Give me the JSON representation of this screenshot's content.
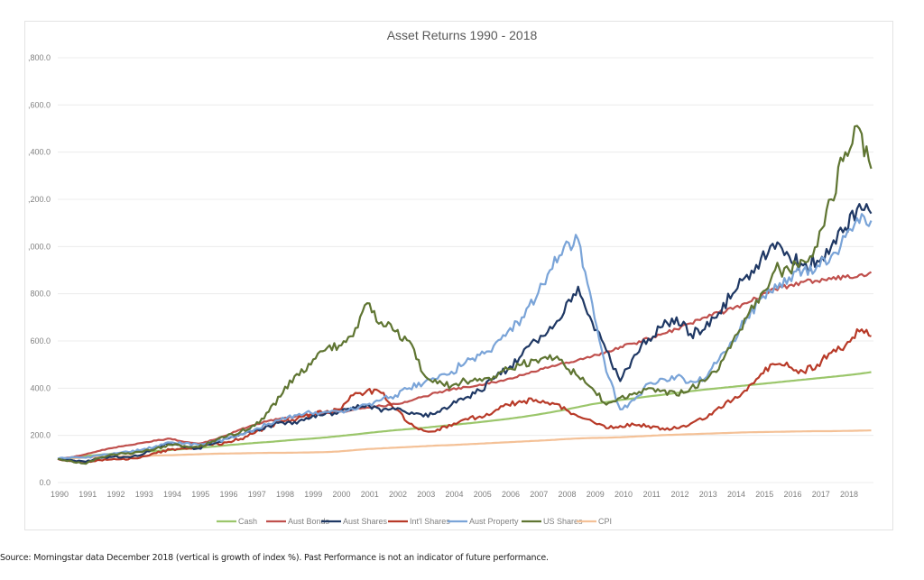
{
  "chart_data": {
    "type": "line",
    "title": "Asset Returns 1990 - 2018",
    "xlabel": "",
    "ylabel": "",
    "ylim": [
      0,
      1800
    ],
    "xlim": [
      1990,
      2019
    ],
    "yticks": [
      0,
      200,
      400,
      600,
      800,
      1000,
      1200,
      1400,
      1600,
      1800
    ],
    "ytick_labels": [
      "0.0",
      "200.0",
      "400.0",
      "600.0",
      "800.0",
      ",000.0",
      ",200.0",
      ",400.0",
      ",600.0",
      ",800.0"
    ],
    "xtick_labels": [
      "1990",
      "1991",
      "1992",
      "1993",
      "1994",
      "1995",
      "1996",
      "1997",
      "1998",
      "1999",
      "2000",
      "2001",
      "2002",
      "2003",
      "2004",
      "2005",
      "2006",
      "2007",
      "2008",
      "2009",
      "2010",
      "2011",
      "2012",
      "2013",
      "2014",
      "2015",
      "2016",
      "2017",
      "2018"
    ],
    "grid": true,
    "legend_position": "bottom",
    "x": [
      1990.0,
      1990.5,
      1991.0,
      1991.5,
      1992.0,
      1992.5,
      1993.0,
      1993.5,
      1994.0,
      1994.5,
      1995.0,
      1995.5,
      1996.0,
      1996.5,
      1997.0,
      1997.5,
      1998.0,
      1998.5,
      1999.0,
      1999.5,
      2000.0,
      2000.5,
      2001.0,
      2001.5,
      2002.0,
      2002.5,
      2003.0,
      2003.5,
      2004.0,
      2004.5,
      2005.0,
      2005.5,
      2006.0,
      2006.5,
      2007.0,
      2007.5,
      2008.0,
      2008.5,
      2009.0,
      2009.5,
      2010.0,
      2010.5,
      2011.0,
      2011.5,
      2012.0,
      2012.5,
      2013.0,
      2013.5,
      2014.0,
      2014.5,
      2015.0,
      2015.5,
      2016.0,
      2016.5,
      2017.0,
      2017.5,
      2018.0,
      2018.5,
      2018.92
    ],
    "series": [
      {
        "name": "Cash",
        "color": "#9bc66b",
        "values": [
          100,
          106,
          113,
          118,
          123,
          127,
          131,
          134,
          138,
          142,
          147,
          152,
          158,
          163,
          168,
          172,
          177,
          182,
          186,
          191,
          197,
          203,
          210,
          216,
          222,
          227,
          232,
          238,
          244,
          250,
          256,
          263,
          270,
          278,
          287,
          297,
          308,
          320,
          332,
          341,
          350,
          357,
          365,
          372,
          380,
          387,
          394,
          400,
          406,
          412,
          418,
          424,
          430,
          436,
          442,
          448,
          454,
          461,
          468
        ]
      },
      {
        "name": "Aust Bonds",
        "color": "#c0504d",
        "values": [
          100,
          108,
          120,
          135,
          148,
          158,
          168,
          178,
          186,
          172,
          165,
          180,
          200,
          225,
          245,
          262,
          272,
          282,
          290,
          296,
          300,
          308,
          318,
          325,
          333,
          345,
          365,
          380,
          395,
          405,
          415,
          425,
          440,
          455,
          470,
          490,
          505,
          520,
          535,
          555,
          575,
          590,
          610,
          630,
          650,
          675,
          700,
          720,
          735,
          760,
          790,
          820,
          835,
          850,
          855,
          862,
          870,
          880,
          892
        ]
      },
      {
        "name": "Aust Shares",
        "color": "#1f3864",
        "values": [
          100,
          95,
          88,
          105,
          110,
          108,
          118,
          150,
          165,
          150,
          145,
          165,
          185,
          205,
          220,
          240,
          255,
          250,
          275,
          290,
          300,
          320,
          330,
          300,
          310,
          290,
          280,
          300,
          330,
          360,
          390,
          440,
          480,
          540,
          600,
          660,
          720,
          830,
          680,
          560,
          430,
          540,
          610,
          660,
          700,
          630,
          650,
          720,
          800,
          880,
          950,
          990,
          960,
          920,
          940,
          1000,
          1080,
          1180,
          1140
        ]
      },
      {
        "name": "Int'l Shares",
        "color": "#b83a28",
        "values": [
          100,
          92,
          85,
          95,
          100,
          98,
          110,
          125,
          140,
          145,
          150,
          160,
          170,
          185,
          210,
          240,
          260,
          270,
          290,
          300,
          310,
          370,
          390,
          380,
          310,
          250,
          220,
          225,
          240,
          270,
          280,
          300,
          330,
          340,
          350,
          330,
          320,
          280,
          260,
          230,
          240,
          245,
          240,
          230,
          230,
          250,
          270,
          320,
          350,
          390,
          460,
          500,
          490,
          470,
          500,
          550,
          580,
          640,
          620
        ]
      },
      {
        "name": "Aust Property",
        "color": "#7aa4d8",
        "values": [
          100,
          108,
          105,
          115,
          125,
          130,
          140,
          155,
          170,
          165,
          160,
          170,
          185,
          205,
          225,
          250,
          275,
          285,
          295,
          300,
          300,
          310,
          330,
          350,
          370,
          400,
          420,
          440,
          470,
          510,
          540,
          580,
          640,
          700,
          780,
          900,
          1000,
          1030,
          760,
          470,
          310,
          350,
          420,
          440,
          450,
          430,
          440,
          520,
          600,
          700,
          780,
          840,
          870,
          900,
          920,
          960,
          1040,
          1100,
          1110
        ]
      },
      {
        "name": "US Shares",
        "color": "#5f7532",
        "values": [
          100,
          90,
          80,
          105,
          120,
          125,
          130,
          145,
          160,
          155,
          150,
          175,
          195,
          215,
          240,
          300,
          380,
          460,
          500,
          560,
          580,
          620,
          760,
          680,
          640,
          600,
          460,
          420,
          410,
          430,
          440,
          450,
          480,
          500,
          520,
          540,
          500,
          450,
          400,
          330,
          360,
          380,
          400,
          390,
          370,
          400,
          430,
          480,
          600,
          700,
          800,
          900,
          900,
          940,
          1000,
          1200,
          1400,
          1500,
          1330
        ]
      },
      {
        "name": "CPI",
        "color": "#f4c197",
        "values": [
          100,
          103,
          106,
          108,
          110,
          112,
          113,
          115,
          116,
          118,
          120,
          122,
          123,
          124,
          125,
          126,
          126,
          127,
          128,
          129,
          132,
          137,
          142,
          145,
          148,
          151,
          154,
          157,
          159,
          162,
          165,
          168,
          171,
          174,
          177,
          180,
          184,
          187,
          189,
          190,
          192,
          195,
          198,
          201,
          203,
          205,
          207,
          209,
          211,
          213,
          214,
          215,
          216,
          217,
          218,
          218,
          219,
          220,
          221
        ]
      }
    ]
  },
  "footnote": "Source: Morningstar data December 2018 (vertical is growth of index %). Past Performance is not an indicator of future performance."
}
